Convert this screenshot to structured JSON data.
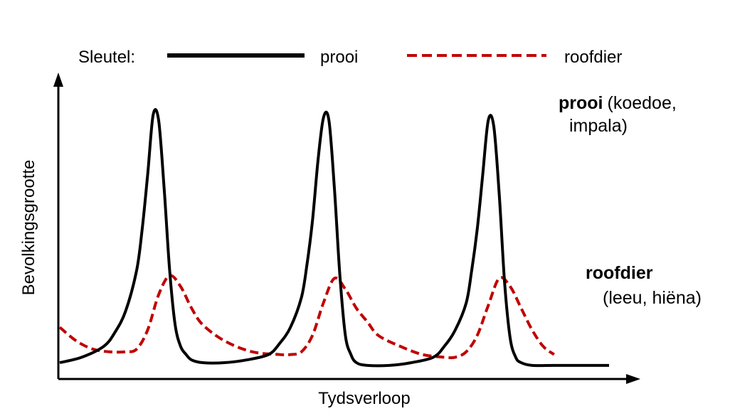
{
  "chart_data": {
    "type": "line",
    "xlabel": "Tydsverloop",
    "ylabel": "Bevolkingsgrootte",
    "legend": {
      "label": "Sleutel:",
      "placement": "top"
    },
    "series": [
      {
        "name": "prooi",
        "color": "#000000",
        "style": "solid",
        "annotation_bold": "prooi",
        "annotation_rest": "(koedoe,",
        "annotation_line2": "impala)",
        "x": [
          0,
          4,
          8,
          10,
          12,
          14,
          15,
          16,
          17,
          18,
          19,
          20,
          21,
          22,
          23,
          24,
          26,
          30,
          34,
          38,
          40,
          42,
          44,
          45,
          46,
          47,
          48,
          49,
          50,
          51,
          52,
          53,
          54,
          56,
          60,
          64,
          68,
          70,
          72,
          74,
          75,
          76,
          77,
          78,
          79,
          80,
          81,
          82,
          83,
          84,
          86,
          90,
          100
        ],
        "y": [
          6,
          8,
          12,
          17,
          25,
          40,
          55,
          75,
          97,
          95,
          70,
          40,
          20,
          12,
          9,
          7,
          6,
          6,
          7,
          9,
          13,
          19,
          30,
          42,
          58,
          80,
          96,
          95,
          70,
          38,
          16,
          9,
          6,
          5,
          5,
          6,
          8,
          12,
          18,
          28,
          40,
          55,
          75,
          95,
          93,
          68,
          35,
          15,
          8,
          6,
          5,
          5,
          5
        ]
      },
      {
        "name": "roofdier",
        "color": "#c00000",
        "style": "dashed",
        "annotation_bold": "roofdier",
        "annotation_line2": "(leeu, hiëna)",
        "x": [
          0,
          3,
          6,
          9,
          12,
          14,
          16,
          18,
          20,
          22,
          24,
          26,
          30,
          35,
          40,
          42,
          44,
          46,
          48,
          50,
          52,
          54,
          56,
          58,
          62,
          66,
          70,
          72,
          74,
          76,
          78,
          80,
          82,
          84,
          86,
          88,
          90
        ],
        "y": [
          19,
          14,
          11,
          10,
          10,
          11,
          18,
          31,
          38,
          34,
          26,
          20,
          14,
          10,
          9,
          9,
          10,
          16,
          28,
          37,
          33,
          26,
          21,
          16,
          12,
          9,
          8,
          8,
          10,
          16,
          27,
          37,
          34,
          26,
          18,
          12,
          9
        ]
      }
    ],
    "xlim": [
      0,
      100
    ],
    "ylim": [
      0,
      110
    ],
    "grid": false
  }
}
